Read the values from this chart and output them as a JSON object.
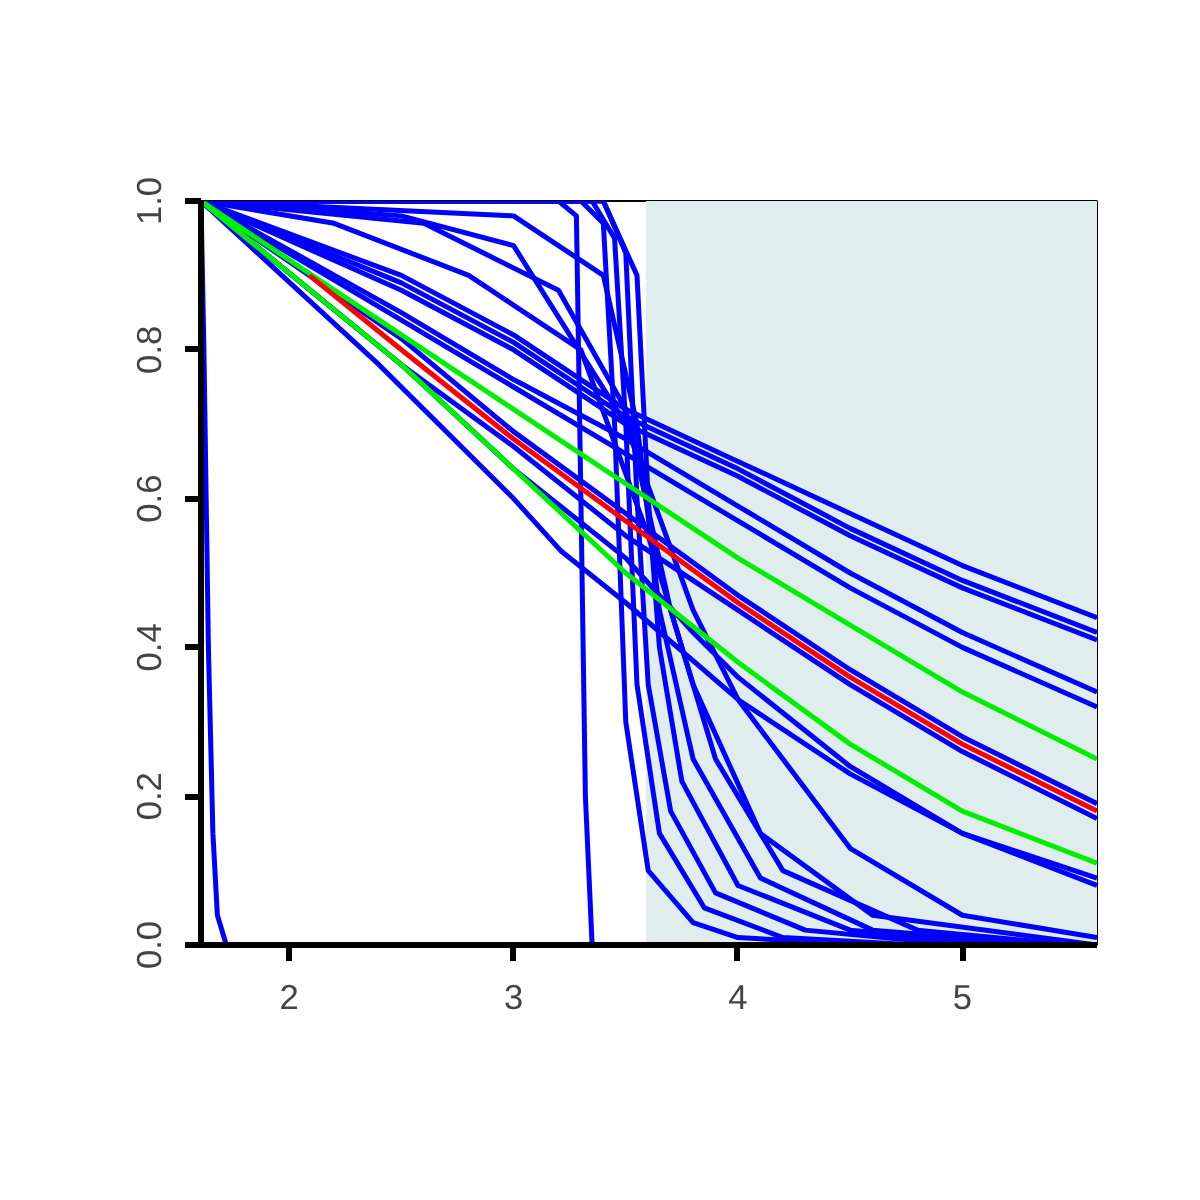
{
  "chart_data": {
    "type": "line",
    "xlim": [
      1.607,
      5.6
    ],
    "ylim": [
      0,
      1
    ],
    "xticks": [
      2,
      3,
      4,
      5
    ],
    "yticks": [
      {
        "value": 0,
        "label": "0.0"
      },
      {
        "value": 0.2,
        "label": "0.2"
      },
      {
        "value": 0.4,
        "label": "0.4"
      },
      {
        "value": 0.6,
        "label": "0.6"
      },
      {
        "value": 0.8,
        "label": "0.8"
      },
      {
        "value": 1,
        "label": "1.0"
      }
    ],
    "grid": false,
    "line_style": "solid",
    "bands": [
      {
        "axis": "x",
        "from": 3.59,
        "to": 5.6,
        "color": "#e0eded"
      }
    ],
    "series": [
      {
        "color": "#0000ff",
        "x": [
          1.607,
          1.62,
          1.64,
          1.66,
          1.68,
          1.72,
          3.3
        ],
        "values": [
          1,
          0.8,
          0.4,
          0.15,
          0.04,
          0,
          0
        ]
      },
      {
        "color": "#0000ff",
        "x": [
          2.0,
          3.2,
          3.28,
          3.3,
          3.32,
          3.35,
          5.6
        ],
        "values": [
          1,
          1,
          0.98,
          0.6,
          0.2,
          0,
          0
        ]
      },
      {
        "color": "#0000ff",
        "x": [
          1.607,
          3.3,
          3.4,
          3.45,
          3.5,
          3.6,
          3.8,
          4.0,
          4.6
        ],
        "values": [
          1,
          1,
          0.97,
          0.7,
          0.3,
          0.1,
          0.03,
          0.01,
          0
        ]
      },
      {
        "color": "#0000ff",
        "x": [
          1.607,
          3.35,
          3.45,
          3.5,
          3.55,
          3.65,
          3.85,
          4.2,
          4.8
        ],
        "values": [
          1,
          1,
          0.95,
          0.7,
          0.35,
          0.15,
          0.05,
          0.01,
          0
        ]
      },
      {
        "color": "#0000ff",
        "x": [
          1.607,
          3.4,
          3.5,
          3.55,
          3.6,
          3.7,
          3.9,
          4.3,
          5.0
        ],
        "values": [
          1,
          1,
          0.93,
          0.6,
          0.35,
          0.18,
          0.07,
          0.02,
          0
        ]
      },
      {
        "color": "#0000ff",
        "x": [
          1.607,
          3.4,
          3.55,
          3.6,
          3.65,
          3.75,
          4.0,
          4.5,
          5.2
        ],
        "values": [
          1,
          1,
          0.9,
          0.6,
          0.4,
          0.22,
          0.08,
          0.02,
          0
        ]
      },
      {
        "color": "#0000ff",
        "x": [
          1.607,
          3.0,
          3.4,
          3.55,
          3.65,
          3.8,
          4.1,
          4.6,
          5.4
        ],
        "values": [
          1,
          0.98,
          0.9,
          0.7,
          0.45,
          0.25,
          0.09,
          0.02,
          0
        ]
      },
      {
        "color": "#0000ff",
        "x": [
          1.607,
          2.6,
          3.2,
          3.5,
          3.7,
          3.9,
          4.2,
          4.8,
          5.5
        ],
        "values": [
          1,
          0.97,
          0.88,
          0.72,
          0.45,
          0.25,
          0.1,
          0.02,
          0
        ]
      },
      {
        "color": "#0000ff",
        "x": [
          1.607,
          2.2,
          2.8,
          3.3,
          3.6,
          3.8,
          4.1,
          4.6,
          5.6
        ],
        "values": [
          1,
          0.97,
          0.9,
          0.8,
          0.55,
          0.35,
          0.15,
          0.04,
          0
        ]
      },
      {
        "color": "#0000ff",
        "x": [
          1.607,
          2.5,
          3.0,
          3.5,
          3.8,
          4.0,
          4.5,
          5.0,
          5.6
        ],
        "values": [
          1,
          0.98,
          0.94,
          0.7,
          0.45,
          0.33,
          0.13,
          0.04,
          0.01
        ]
      },
      {
        "color": "#0000ff",
        "x": [
          1.607,
          2.5,
          3.0,
          3.5,
          4.0,
          4.5,
          5.0,
          5.6
        ],
        "values": [
          1,
          0.9,
          0.82,
          0.72,
          0.65,
          0.58,
          0.51,
          0.44
        ]
      },
      {
        "color": "#0000ff",
        "x": [
          1.607,
          2.5,
          3.0,
          3.5,
          4.0,
          4.5,
          5.0,
          5.6
        ],
        "values": [
          1,
          0.89,
          0.81,
          0.71,
          0.64,
          0.56,
          0.49,
          0.42
        ]
      },
      {
        "color": "#0000ff",
        "x": [
          1.607,
          2.5,
          3.0,
          3.5,
          4.0,
          4.5,
          5.0,
          5.6
        ],
        "values": [
          1,
          0.88,
          0.8,
          0.7,
          0.63,
          0.55,
          0.48,
          0.41
        ]
      },
      {
        "color": "#0000ff",
        "x": [
          1.607,
          2.5,
          3.0,
          3.5,
          4.0,
          4.5,
          5.0,
          5.6
        ],
        "values": [
          1,
          0.85,
          0.76,
          0.68,
          0.59,
          0.5,
          0.42,
          0.34
        ]
      },
      {
        "color": "#0000ff",
        "x": [
          1.607,
          2.5,
          3.0,
          3.5,
          4.0,
          4.5,
          5.0,
          5.6
        ],
        "values": [
          1,
          0.84,
          0.75,
          0.66,
          0.57,
          0.48,
          0.4,
          0.32
        ]
      },
      {
        "color": "#0000ff",
        "x": [
          1.607,
          2.5,
          3.0,
          3.5,
          4.0,
          4.5,
          5.0,
          5.6
        ],
        "values": [
          1,
          0.815,
          0.69,
          0.58,
          0.47,
          0.37,
          0.28,
          0.19
        ]
      },
      {
        "color": "#0000ff",
        "x": [
          1.607,
          2.5,
          3.0,
          3.5,
          4.0,
          4.5,
          5.0,
          5.6
        ],
        "values": [
          1,
          0.78,
          0.67,
          0.55,
          0.45,
          0.35,
          0.26,
          0.17
        ]
      },
      {
        "color": "#0000ff",
        "x": [
          1.607,
          2.4,
          3.0,
          3.21,
          3.5,
          4.0,
          4.5,
          5.0,
          5.6
        ],
        "values": [
          1,
          0.78,
          0.6,
          0.53,
          0.46,
          0.33,
          0.23,
          0.15,
          0.08
        ]
      },
      {
        "color": "#0000ff",
        "x": [
          1.607,
          2.5,
          3.0,
          3.5,
          3.8,
          4.0,
          4.5,
          5.0,
          5.6
        ],
        "values": [
          1,
          0.78,
          0.64,
          0.52,
          0.42,
          0.36,
          0.24,
          0.15,
          0.09
        ]
      },
      {
        "color": "#00ee00",
        "x": [
          1.607,
          2.5,
          3.0,
          3.5,
          4.0,
          4.5,
          5.0,
          5.6
        ],
        "values": [
          1,
          0.82,
          0.72,
          0.62,
          0.52,
          0.43,
          0.34,
          0.25
        ]
      },
      {
        "color": "#00ee00",
        "x": [
          1.607,
          2.5,
          3.0,
          3.5,
          4.0,
          4.5,
          5.0,
          5.6
        ],
        "values": [
          1,
          0.78,
          0.64,
          0.5,
          0.38,
          0.27,
          0.18,
          0.11
        ]
      },
      {
        "color": "#ff0000",
        "x": [
          2.09,
          2.5,
          3.0,
          3.5,
          4.0,
          4.5,
          5.0,
          5.6
        ],
        "values": [
          0.9,
          0.8,
          0.68,
          0.57,
          0.46,
          0.36,
          0.27,
          0.18
        ]
      }
    ]
  }
}
